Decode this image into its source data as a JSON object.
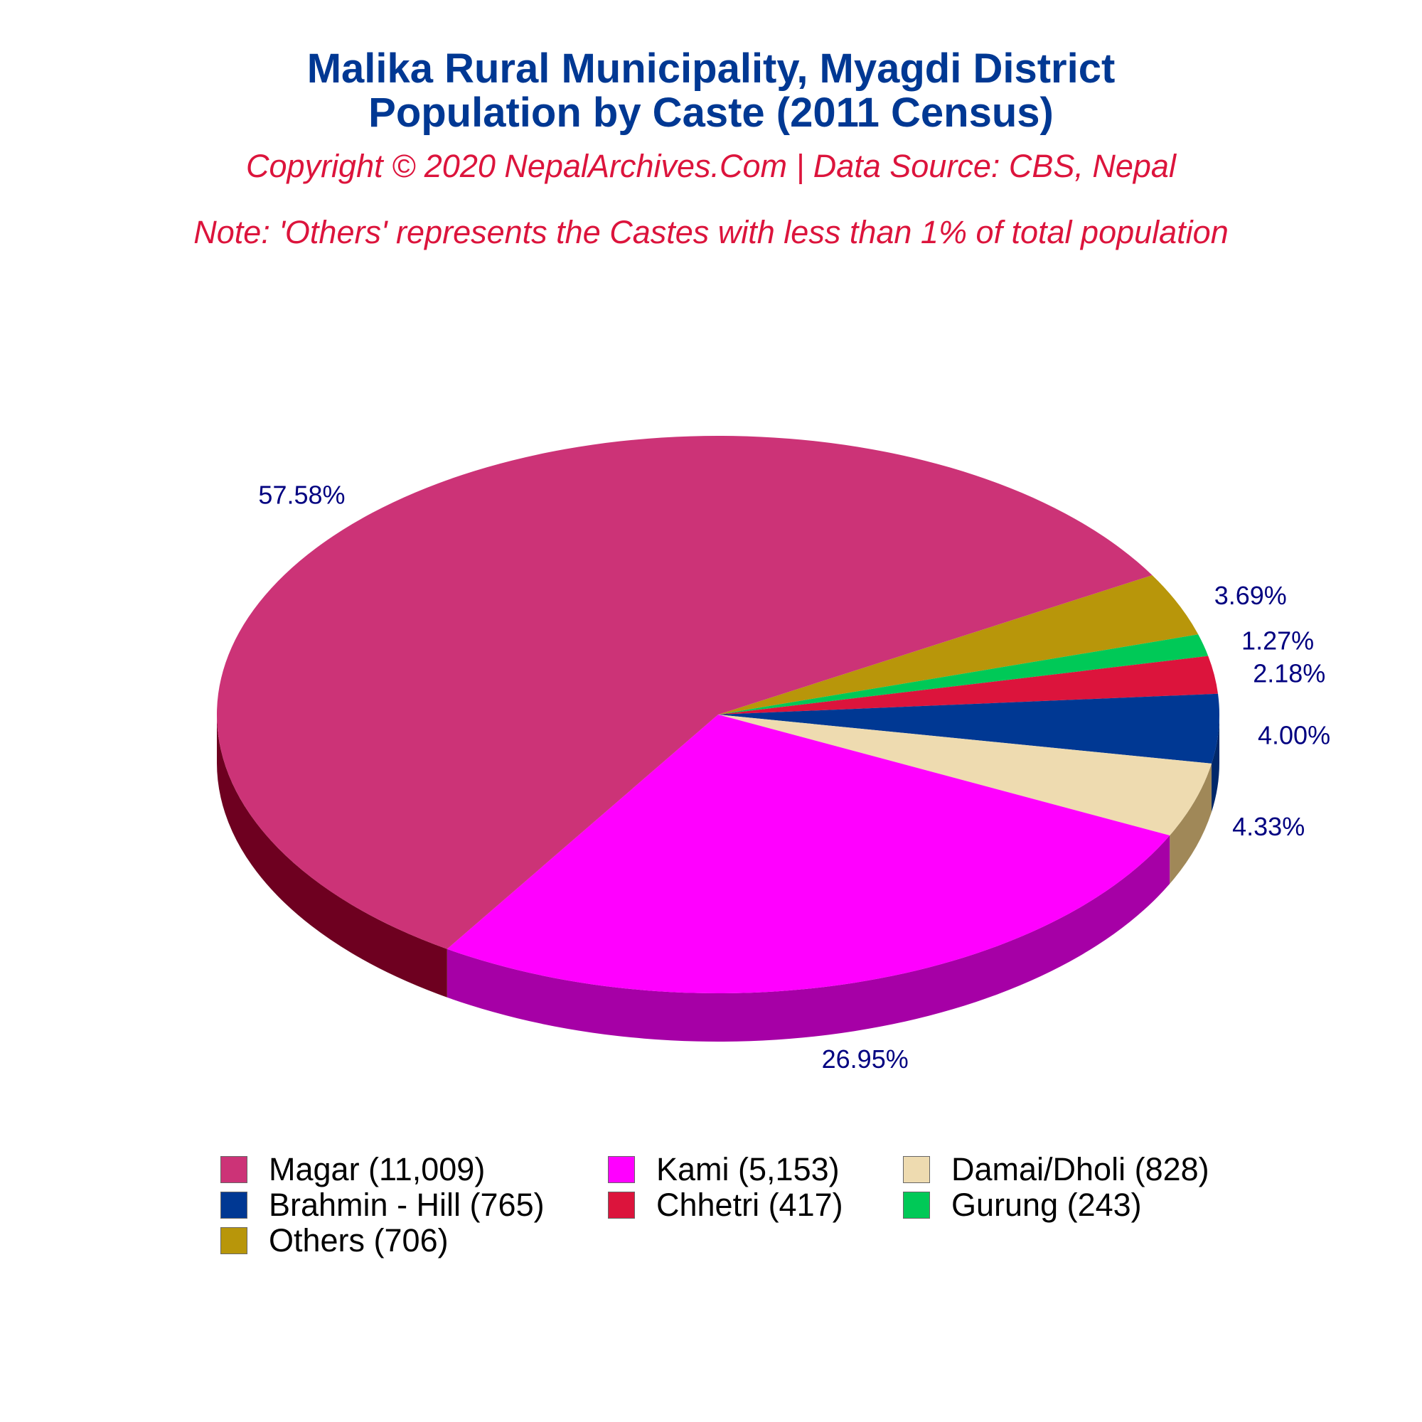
{
  "header": {
    "title_line1": "Malika Rural Municipality, Myagdi District",
    "title_line2": "Population by Caste (2011 Census)",
    "subtitle": "Copyright © 2020 NepalArchives.Com | Data Source: CBS, Nepal",
    "note": "Note: 'Others' represents the Castes with less than 1% of total population"
  },
  "chart_data": {
    "type": "pie",
    "style": "3d",
    "start_angle_deg": -30,
    "direction": "clockwise",
    "slices": [
      {
        "name": "Others",
        "value": 706,
        "percent": "3.69%",
        "legend": "Others (706)",
        "color": "#B8960A",
        "side_color": "#8A7008"
      },
      {
        "name": "Gurung",
        "value": 243,
        "percent": "1.27%",
        "legend": "Gurung (243)",
        "color": "#00C957",
        "side_color": "#009A42"
      },
      {
        "name": "Chhetri",
        "value": 417,
        "percent": "2.18%",
        "legend": "Chhetri (417)",
        "color": "#DC143C",
        "side_color": "#A50F2D"
      },
      {
        "name": "Brahmin - Hill",
        "value": 765,
        "percent": "4.00%",
        "legend": "Brahmin - Hill (765)",
        "color": "#003893",
        "side_color": "#00286A"
      },
      {
        "name": "Damai/Dholi",
        "value": 828,
        "percent": "4.33%",
        "legend": "Damai/Dholi (828)",
        "color": "#EEDBB0",
        "side_color": "#A08858"
      },
      {
        "name": "Kami",
        "value": 5153,
        "percent": "26.95%",
        "legend": "Kami (5,153)",
        "color": "#FF00FF",
        "side_color": "#A600A6"
      },
      {
        "name": "Magar",
        "value": 11009,
        "percent": "57.58%",
        "legend": "Magar (11,009)",
        "color": "#CC3377",
        "side_color": "#6E0020"
      }
    ],
    "legend_order": [
      "Magar",
      "Kami",
      "Damai/Dholi",
      "Brahmin - Hill",
      "Chhetri",
      "Gurung",
      "Others"
    ],
    "legend_position": "bottom",
    "label_color": "#000080"
  }
}
